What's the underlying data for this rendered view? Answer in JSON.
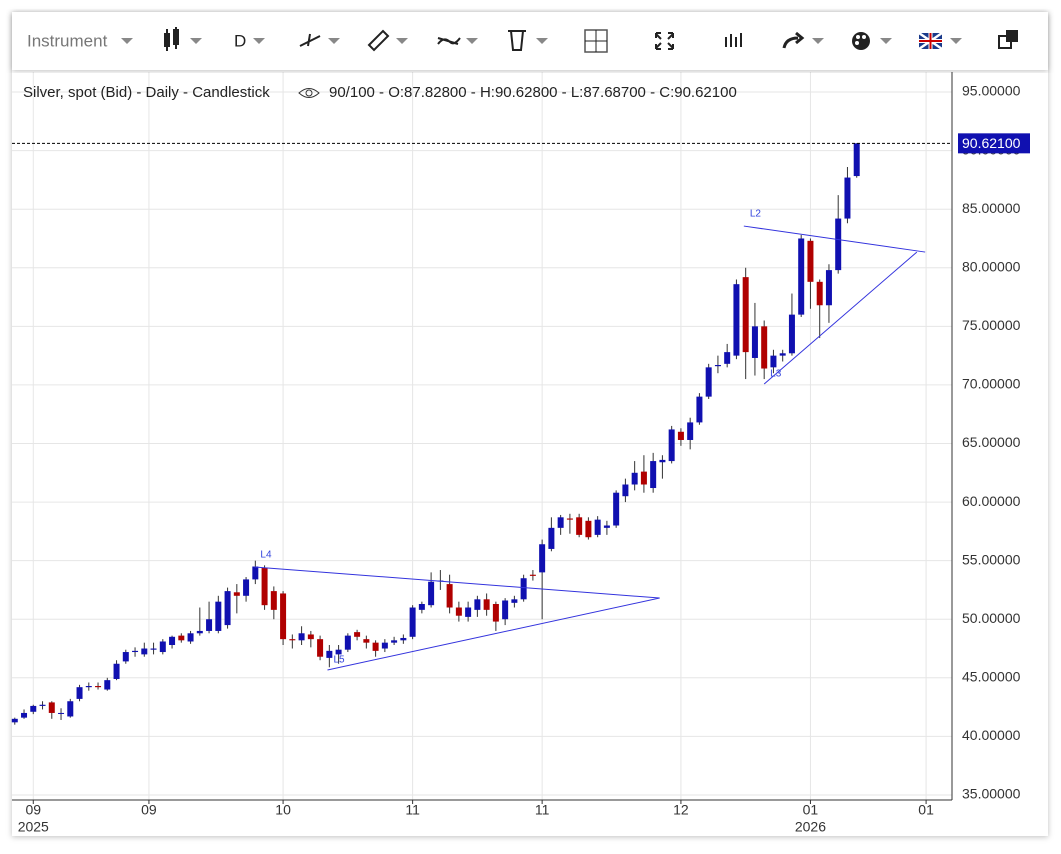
{
  "toolbar": {
    "instrument": "Instrument",
    "period": "D"
  },
  "chart_data": {
    "type": "candlestick",
    "title": "Silver, spot (Bid) - Daily - Candlestick",
    "subtitle": "90/100 - O:87.82800 - H:90.62800 - L:87.68700 - C:90.62100",
    "open": [
      41.2,
      41.6,
      42.1,
      42.6,
      42.9,
      42.0,
      41.7,
      43.2,
      44.2,
      44.3,
      44.0,
      44.9,
      46.4,
      47.2,
      47.0,
      47.4,
      47.2,
      47.8,
      48.6,
      48.1,
      48.8,
      49.0,
      49.0,
      49.5,
      52.3,
      52.0,
      53.4,
      54.4,
      52.4,
      52.2,
      48.3,
      48.2,
      48.7,
      48.3,
      46.7,
      47.0,
      47.4,
      48.9,
      48.3,
      48.0,
      47.5,
      48.0,
      48.2,
      48.5,
      50.8,
      51.2,
      53.3,
      53.0,
      51.0,
      50.2,
      50.8,
      51.7,
      51.3,
      50.0,
      51.4,
      51.7,
      53.8,
      54.0,
      56.0,
      57.8,
      58.6,
      58.7,
      58.4,
      57.2,
      57.8,
      58.0,
      60.5,
      61.5,
      62.6,
      61.2,
      63.4,
      63.5,
      66.0,
      65.3,
      66.8,
      69.0,
      71.6,
      71.8,
      72.5,
      79.2,
      72.3,
      75.0,
      71.5,
      72.5,
      72.7,
      76.0,
      82.3,
      78.8,
      76.8,
      79.8,
      84.2,
      87.828
    ],
    "high": [
      41.6,
      42.3,
      42.7,
      43.0,
      43.0,
      42.4,
      43.2,
      44.4,
      44.6,
      44.6,
      45.0,
      46.5,
      47.4,
      47.6,
      48.0,
      48.0,
      48.3,
      48.6,
      48.8,
      49.0,
      51.0,
      51.5,
      52.0,
      52.7,
      53.0,
      53.6,
      55.0,
      54.6,
      52.8,
      52.4,
      48.7,
      49.4,
      49.0,
      48.6,
      47.8,
      47.8,
      48.8,
      49.1,
      48.6,
      48.2,
      48.3,
      48.5,
      48.7,
      51.2,
      51.5,
      54.0,
      54.2,
      53.8,
      51.5,
      51.5,
      52.0,
      52.2,
      51.5,
      51.8,
      52.0,
      53.8,
      54.2,
      56.8,
      58.7,
      58.9,
      59.0,
      59.0,
      58.7,
      58.8,
      58.4,
      61.0,
      62.0,
      63.5,
      64.0,
      64.2,
      64.0,
      66.5,
      66.3,
      67.2,
      69.3,
      71.8,
      72.5,
      73.5,
      79.0,
      80.0,
      77.0,
      75.5,
      73.0,
      73.0,
      77.8,
      82.8,
      82.5,
      79.0,
      80.3,
      86.2,
      88.6,
      90.628
    ],
    "low": [
      41.0,
      41.5,
      41.9,
      42.3,
      41.5,
      41.4,
      41.6,
      43.0,
      43.9,
      44.0,
      43.9,
      44.8,
      46.2,
      46.8,
      46.8,
      47.0,
      47.0,
      47.5,
      48.0,
      47.9,
      48.6,
      48.8,
      48.8,
      49.2,
      50.5,
      51.5,
      53.0,
      50.8,
      50.0,
      47.8,
      47.5,
      47.8,
      47.6,
      46.5,
      45.9,
      46.2,
      47.2,
      48.2,
      47.5,
      46.8,
      47.2,
      47.8,
      47.9,
      48.3,
      50.5,
      51.0,
      52.5,
      50.5,
      49.8,
      49.8,
      50.2,
      50.3,
      49.0,
      49.5,
      51.0,
      51.5,
      53.3,
      50.0,
      55.8,
      57.2,
      57.3,
      57.0,
      56.8,
      57.0,
      57.2,
      57.8,
      60.0,
      61.0,
      60.8,
      60.8,
      62.0,
      63.3,
      64.8,
      64.5,
      66.6,
      68.8,
      71.0,
      71.5,
      72.2,
      70.5,
      70.8,
      70.5,
      71.0,
      72.0,
      72.5,
      75.8,
      76.5,
      74.0,
      75.3,
      79.5,
      83.8,
      87.687
    ],
    "close": [
      41.5,
      42.0,
      42.6,
      42.7,
      42.0,
      42.0,
      43.0,
      44.2,
      44.3,
      44.2,
      44.8,
      46.2,
      47.2,
      47.3,
      47.5,
      47.5,
      48.1,
      48.5,
      48.2,
      48.8,
      49.0,
      50.0,
      51.5,
      52.4,
      52.0,
      53.4,
      54.5,
      51.2,
      50.8,
      48.3,
      48.2,
      48.8,
      48.3,
      46.8,
      47.3,
      47.4,
      48.6,
      48.5,
      48.0,
      47.3,
      48.0,
      48.2,
      48.4,
      51.0,
      51.3,
      53.2,
      53.3,
      51.0,
      50.3,
      51.0,
      51.7,
      50.8,
      49.8,
      51.6,
      51.7,
      53.5,
      53.7,
      56.4,
      57.8,
      58.7,
      58.5,
      57.2,
      57.0,
      58.5,
      58.0,
      60.8,
      61.5,
      62.5,
      61.5,
      63.5,
      63.6,
      66.2,
      65.3,
      66.8,
      69.0,
      71.5,
      71.7,
      72.8,
      78.6,
      72.8,
      75.0,
      71.4,
      72.5,
      72.7,
      76.0,
      82.5,
      78.8,
      76.8,
      79.8,
      84.2,
      87.7,
      90.621
    ],
    "up_color": "#1010b0",
    "down_color": "#b00000",
    "xlim": [
      -0.3,
      101.3
    ],
    "xticks": [
      {
        "value": 2,
        "label": "09",
        "sublabel": "2025"
      },
      {
        "value": 14.5,
        "label": "09"
      },
      {
        "value": 29,
        "label": "10"
      },
      {
        "value": 43,
        "label": "11"
      },
      {
        "value": 57,
        "label": "11"
      },
      {
        "value": 72,
        "label": "12"
      },
      {
        "value": 86,
        "label": "01",
        "sublabel": "2026"
      },
      {
        "value": 98.5,
        "label": "01"
      }
    ],
    "ylim": [
      34.57,
      96.71
    ],
    "yticks": [
      {
        "value": 35,
        "label": "35.00000"
      },
      {
        "value": 40,
        "label": "40.00000"
      },
      {
        "value": 45,
        "label": "45.00000"
      },
      {
        "value": 50,
        "label": "50.00000"
      },
      {
        "value": 55,
        "label": "55.00000"
      },
      {
        "value": 60,
        "label": "60.00000"
      },
      {
        "value": 65,
        "label": "65.00000"
      },
      {
        "value": 70,
        "label": "70.00000"
      },
      {
        "value": 75,
        "label": "75.00000"
      },
      {
        "value": 80,
        "label": "80.00000"
      },
      {
        "value": 85,
        "label": "85.00000"
      },
      {
        "value": 90,
        "label": "90.00000"
      },
      {
        "value": 95,
        "label": "95.00000"
      }
    ],
    "last_price": {
      "value": 90.621,
      "label": "90.62100"
    },
    "grid": true,
    "line_color": "#3333dd",
    "annotations": [
      {
        "label": "L4",
        "x": [
          25.9,
          69.7
        ],
        "y": [
          54.46,
          51.81
        ]
      },
      {
        "label": "L5",
        "x": [
          33.8,
          69.7
        ],
        "y": [
          45.67,
          51.81
        ]
      },
      {
        "label": "L2",
        "x": [
          78.8,
          98.4
        ],
        "y": [
          83.56,
          81.34
        ]
      },
      {
        "label": "L3",
        "x": [
          81.0,
          97.5
        ],
        "y": [
          70.08,
          81.34
        ]
      }
    ]
  }
}
